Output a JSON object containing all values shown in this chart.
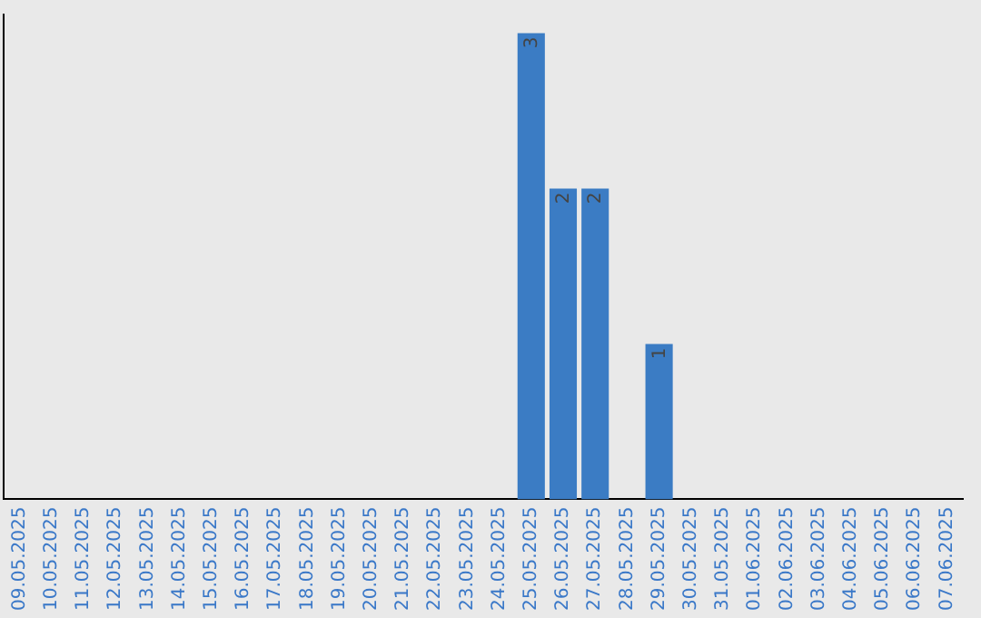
{
  "chart_data": {
    "type": "bar",
    "categories": [
      "09.05.2025",
      "10.05.2025",
      "11.05.2025",
      "12.05.2025",
      "13.05.2025",
      "14.05.2025",
      "15.05.2025",
      "16.05.2025",
      "17.05.2025",
      "18.05.2025",
      "19.05.2025",
      "20.05.2025",
      "21.05.2025",
      "22.05.2025",
      "23.05.2025",
      "24.05.2025",
      "25.05.2025",
      "26.05.2025",
      "27.05.2025",
      "28.05.2025",
      "29.05.2025",
      "30.05.2025",
      "31.05.2025",
      "01.06.2025",
      "02.06.2025",
      "03.06.2025",
      "04.06.2025",
      "05.06.2025",
      "06.06.2025",
      "07.06.2025"
    ],
    "values": [
      null,
      null,
      null,
      null,
      null,
      null,
      null,
      null,
      null,
      null,
      null,
      null,
      null,
      null,
      null,
      null,
      3,
      2,
      2,
      null,
      1,
      null,
      null,
      null,
      null,
      null,
      null,
      null,
      null,
      null
    ],
    "data_labels": true,
    "color": "#3b7cc4",
    "grid": false,
    "legend": false,
    "tick_labels": "x"
  }
}
